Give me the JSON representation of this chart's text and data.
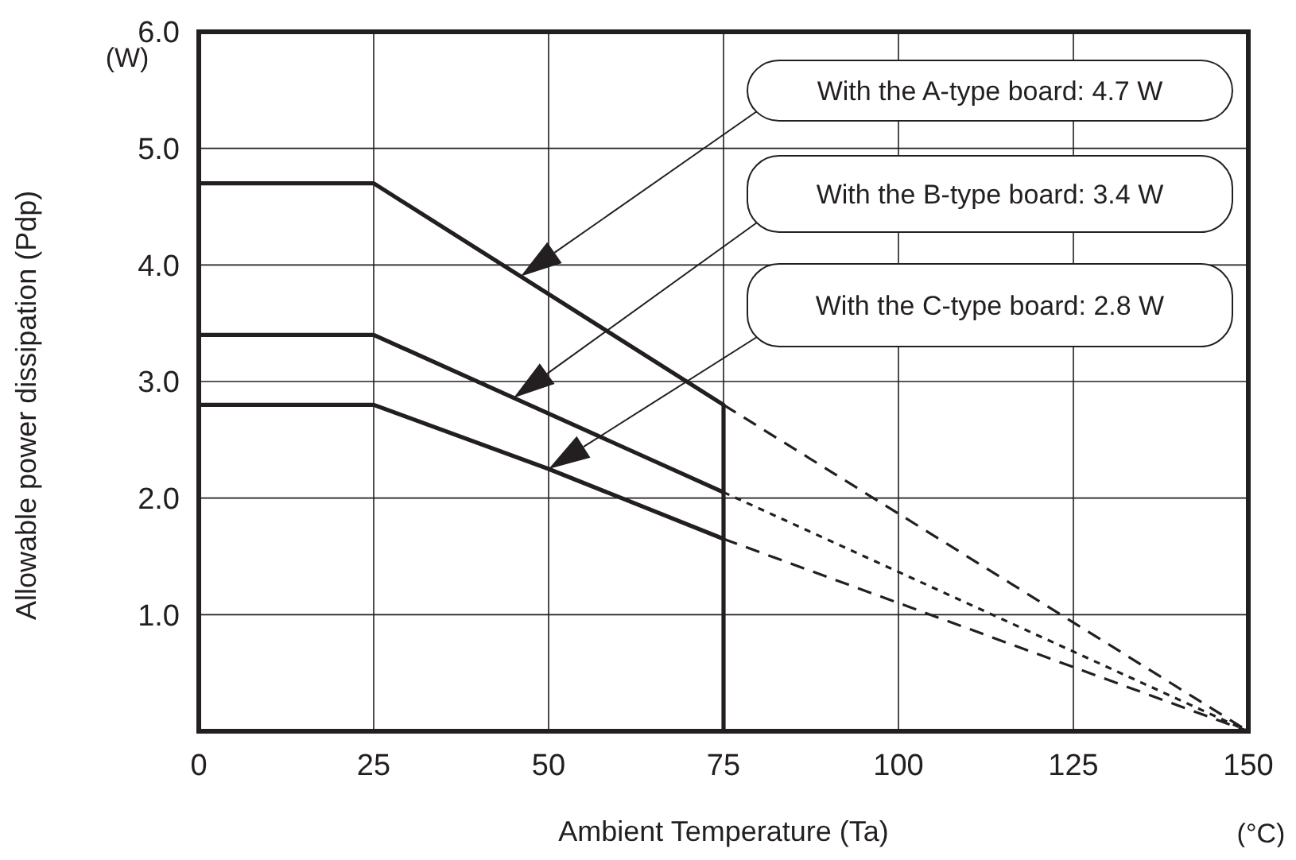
{
  "chart_data": {
    "type": "line",
    "xlabel": "Ambient Temperature (Ta)",
    "ylabel": "Allowable power dissipation (Pdp)",
    "xlim": [
      0,
      150
    ],
    "xticks": [
      0,
      25,
      50,
      75,
      100,
      125,
      150
    ],
    "ylim": [
      0,
      6
    ],
    "yticks": [
      {
        "value": 0,
        "label": null
      },
      {
        "value": 1,
        "label": "1.0"
      },
      {
        "value": 2,
        "label": "2.0"
      },
      {
        "value": 3,
        "label": "3.0"
      },
      {
        "value": 4,
        "label": "4.0"
      },
      {
        "value": 5,
        "label": "5.0"
      },
      {
        "value": 6,
        "label": "6.0"
      }
    ],
    "grid": true,
    "marker": "none",
    "line_style": "solid",
    "series": [
      {
        "color": "#231f20",
        "x": [
          0,
          25,
          75,
          75
        ],
        "values": [
          4.7,
          4.7,
          2.8,
          0
        ]
      },
      {
        "color": "#231f20",
        "x": [
          0,
          25,
          75
        ],
        "values": [
          3.4,
          3.4,
          2.05
        ]
      },
      {
        "color": "#231f20",
        "x": [
          0,
          25,
          50,
          75
        ],
        "values": [
          2.8,
          2.8,
          2.25,
          1.65
        ]
      },
      {
        "color": "#231f20",
        "x": [
          75,
          150
        ],
        "values": [
          2.8,
          0
        ],
        "line_style": "dashed"
      },
      {
        "color": "#231f20",
        "x": [
          75,
          150
        ],
        "values": [
          2.05,
          0
        ],
        "line_style": "dotted"
      },
      {
        "color": "#231f20",
        "x": [
          75,
          150
        ],
        "values": [
          1.65,
          0
        ],
        "line_style": "dashed"
      }
    ],
    "annotations": [
      "With the A-type board: 4.7 W",
      "With the B-type board: 3.4 W",
      "With the C-type board: 2.8 W",
      "(W)",
      "(°C)"
    ]
  }
}
